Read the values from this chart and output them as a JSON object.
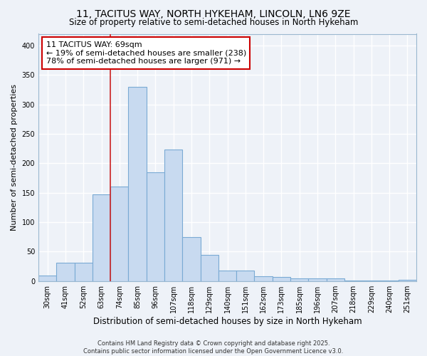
{
  "title": "11, TACITUS WAY, NORTH HYKEHAM, LINCOLN, LN6 9ZE",
  "subtitle": "Size of property relative to semi-detached houses in North Hykeham",
  "xlabel": "Distribution of semi-detached houses by size in North Hykeham",
  "ylabel": "Number of semi-detached properties",
  "categories": [
    "30sqm",
    "41sqm",
    "52sqm",
    "63sqm",
    "74sqm",
    "85sqm",
    "96sqm",
    "107sqm",
    "118sqm",
    "129sqm",
    "140sqm",
    "151sqm",
    "162sqm",
    "173sqm",
    "185sqm",
    "196sqm",
    "207sqm",
    "218sqm",
    "229sqm",
    "240sqm",
    "251sqm"
  ],
  "values": [
    9,
    31,
    31,
    147,
    161,
    330,
    185,
    224,
    75,
    44,
    18,
    18,
    8,
    7,
    5,
    4,
    4,
    1,
    1,
    1,
    2
  ],
  "bar_color": "#c8daf0",
  "bar_edge_color": "#7aaad4",
  "vline_x": 3.5,
  "vline_color": "#cc2222",
  "annotation_label": "11 TACITUS WAY: 69sqm",
  "annotation_line1": "← 19% of semi-detached houses are smaller (238)",
  "annotation_line2": "78% of semi-detached houses are larger (971) →",
  "annotation_box_color": "#ffffff",
  "annotation_box_edge": "#cc0000",
  "ylim": [
    0,
    420
  ],
  "yticks": [
    0,
    50,
    100,
    150,
    200,
    250,
    300,
    350,
    400
  ],
  "footer_line1": "Contains HM Land Registry data © Crown copyright and database right 2025.",
  "footer_line2": "Contains public sector information licensed under the Open Government Licence v3.0.",
  "bg_color": "#eef2f8",
  "grid_color": "#ffffff",
  "title_fontsize": 10,
  "subtitle_fontsize": 8.5,
  "ylabel_fontsize": 8,
  "xlabel_fontsize": 8.5,
  "tick_fontsize": 7,
  "annotation_fontsize": 8,
  "footer_fontsize": 6
}
